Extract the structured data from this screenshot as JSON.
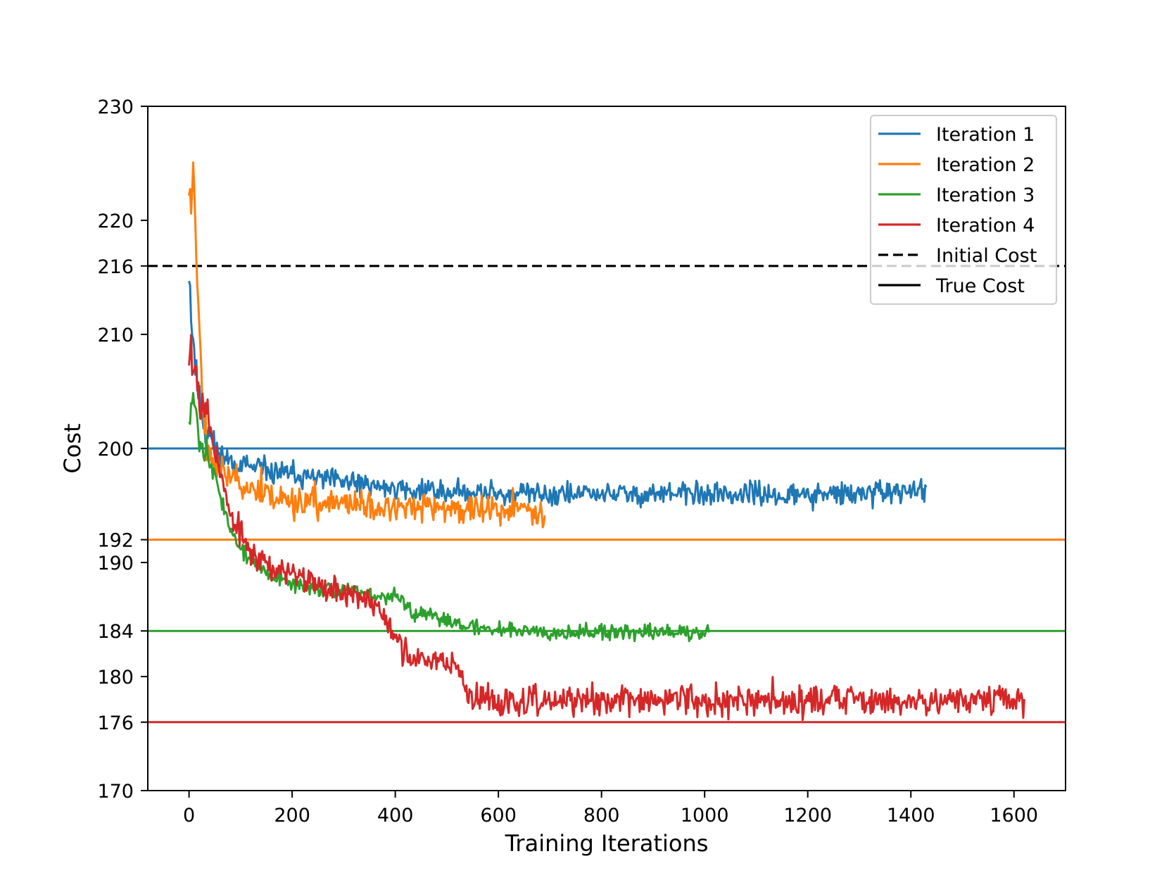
{
  "chart_data": {
    "type": "line",
    "title": "",
    "xlabel": "Training Iterations",
    "ylabel": "Cost",
    "xlim": [
      -80,
      1700
    ],
    "ylim": [
      170,
      230
    ],
    "xticks": [
      0,
      200,
      400,
      600,
      800,
      1000,
      1200,
      1400,
      1600
    ],
    "yticks": [
      170,
      176,
      180,
      184,
      190,
      192,
      200,
      210,
      216,
      220,
      230
    ],
    "grid": false,
    "legend_position": "top-right",
    "series": [
      {
        "name": "Iteration 1",
        "color": "#1f77b4",
        "noise": 0.8,
        "seed": 11,
        "points": [
          [
            0,
            216
          ],
          [
            5,
            211
          ],
          [
            15,
            206
          ],
          [
            30,
            202
          ],
          [
            60,
            199.5
          ],
          [
            100,
            198.5
          ],
          [
            150,
            198
          ],
          [
            200,
            197.7
          ],
          [
            300,
            197
          ],
          [
            400,
            196.5
          ],
          [
            500,
            196.2
          ],
          [
            600,
            196.1
          ],
          [
            700,
            196
          ],
          [
            800,
            196
          ],
          [
            1000,
            196
          ],
          [
            1200,
            195.9
          ],
          [
            1300,
            196
          ],
          [
            1430,
            196.3
          ]
        ]
      },
      {
        "name": "Iteration 2",
        "color": "#ff7f0e",
        "noise": 1.0,
        "seed": 23,
        "points": [
          [
            0,
            223
          ],
          [
            4,
            221
          ],
          [
            8,
            226
          ],
          [
            12,
            219
          ],
          [
            18,
            214
          ],
          [
            25,
            206
          ],
          [
            35,
            200
          ],
          [
            60,
            198
          ],
          [
            100,
            197
          ],
          [
            150,
            196
          ],
          [
            200,
            195.4
          ],
          [
            300,
            195.1
          ],
          [
            400,
            194.8
          ],
          [
            500,
            194.7
          ],
          [
            600,
            194.6
          ],
          [
            690,
            194.7
          ]
        ]
      },
      {
        "name": "Iteration 3",
        "color": "#2ca02c",
        "noise": 0.55,
        "seed": 37,
        "points": [
          [
            0,
            203
          ],
          [
            10,
            205
          ],
          [
            20,
            201
          ],
          [
            40,
            199
          ],
          [
            60,
            196
          ],
          [
            80,
            193
          ],
          [
            100,
            191
          ],
          [
            150,
            189
          ],
          [
            200,
            188
          ],
          [
            300,
            187.5
          ],
          [
            400,
            187
          ],
          [
            420,
            186.5
          ],
          [
            430,
            185.5
          ],
          [
            500,
            185
          ],
          [
            550,
            184.3
          ],
          [
            700,
            184
          ],
          [
            850,
            183.8
          ],
          [
            1010,
            184
          ]
        ]
      },
      {
        "name": "Iteration 4",
        "color": "#d62728",
        "noise": 1.0,
        "seed": 53,
        "points": [
          [
            0,
            210
          ],
          [
            10,
            207
          ],
          [
            20,
            206
          ],
          [
            30,
            204
          ],
          [
            50,
            200
          ],
          [
            80,
            194
          ],
          [
            120,
            191
          ],
          [
            180,
            189
          ],
          [
            250,
            188.2
          ],
          [
            320,
            187.3
          ],
          [
            370,
            186
          ],
          [
            400,
            183.5
          ],
          [
            430,
            181.2
          ],
          [
            500,
            181.5
          ],
          [
            520,
            181.2
          ],
          [
            540,
            178.2
          ],
          [
            620,
            177.7
          ],
          [
            800,
            177.9
          ],
          [
            1000,
            178
          ],
          [
            1200,
            177.9
          ],
          [
            1400,
            178
          ],
          [
            1620,
            178
          ]
        ]
      }
    ],
    "reference_lines": [
      {
        "name": "Initial Cost",
        "y": 216,
        "color": "#000000",
        "style": "dashed"
      },
      {
        "name": "True Cost (Iteration 1)",
        "y": 200,
        "color": "#1f77b4",
        "style": "solid"
      },
      {
        "name": "True Cost (Iteration 2)",
        "y": 192,
        "color": "#ff7f0e",
        "style": "solid"
      },
      {
        "name": "True Cost (Iteration 3)",
        "y": 184,
        "color": "#2ca02c",
        "style": "solid"
      },
      {
        "name": "True Cost (Iteration 4)",
        "y": 176,
        "color": "#d62728",
        "style": "solid"
      }
    ],
    "legend": [
      {
        "label": "Iteration 1",
        "color": "#1f77b4",
        "style": "solid"
      },
      {
        "label": "Iteration 2",
        "color": "#ff7f0e",
        "style": "solid"
      },
      {
        "label": "Iteration 3",
        "color": "#2ca02c",
        "style": "solid"
      },
      {
        "label": "Iteration 4",
        "color": "#d62728",
        "style": "solid"
      },
      {
        "label": "Initial Cost",
        "color": "#000000",
        "style": "dashed"
      },
      {
        "label": "True Cost",
        "color": "#000000",
        "style": "solid"
      }
    ]
  }
}
